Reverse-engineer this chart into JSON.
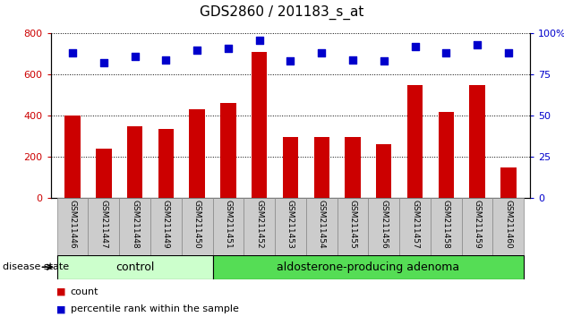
{
  "title": "GDS2860 / 201183_s_at",
  "categories": [
    "GSM211446",
    "GSM211447",
    "GSM211448",
    "GSM211449",
    "GSM211450",
    "GSM211451",
    "GSM211452",
    "GSM211453",
    "GSM211454",
    "GSM211455",
    "GSM211456",
    "GSM211457",
    "GSM211458",
    "GSM211459",
    "GSM211460"
  ],
  "counts": [
    400,
    240,
    350,
    335,
    430,
    460,
    710,
    295,
    295,
    295,
    260,
    550,
    420,
    550,
    148
  ],
  "percentiles": [
    88,
    82,
    86,
    84,
    90,
    91,
    96,
    83,
    88,
    84,
    83,
    92,
    88,
    93,
    88
  ],
  "bar_color": "#cc0000",
  "dot_color": "#0000cc",
  "ylim_left": [
    0,
    800
  ],
  "ylim_right": [
    0,
    100
  ],
  "yticks_left": [
    0,
    200,
    400,
    600,
    800
  ],
  "yticks_right": [
    0,
    25,
    50,
    75,
    100
  ],
  "group_labels": [
    "control",
    "aldosterone-producing adenoma"
  ],
  "ctrl_count": 5,
  "group_color_ctrl": "#ccffcc",
  "group_color_adeno": "#55dd55",
  "disease_state_label": "disease state",
  "legend_items": [
    "count",
    "percentile rank within the sample"
  ],
  "legend_colors": [
    "#cc0000",
    "#0000cc"
  ],
  "bar_color_left_axis": "#cc0000",
  "percentile_right_axis_color": "#0000cc",
  "tick_label_area_color": "#cccccc",
  "title_fontsize": 11
}
